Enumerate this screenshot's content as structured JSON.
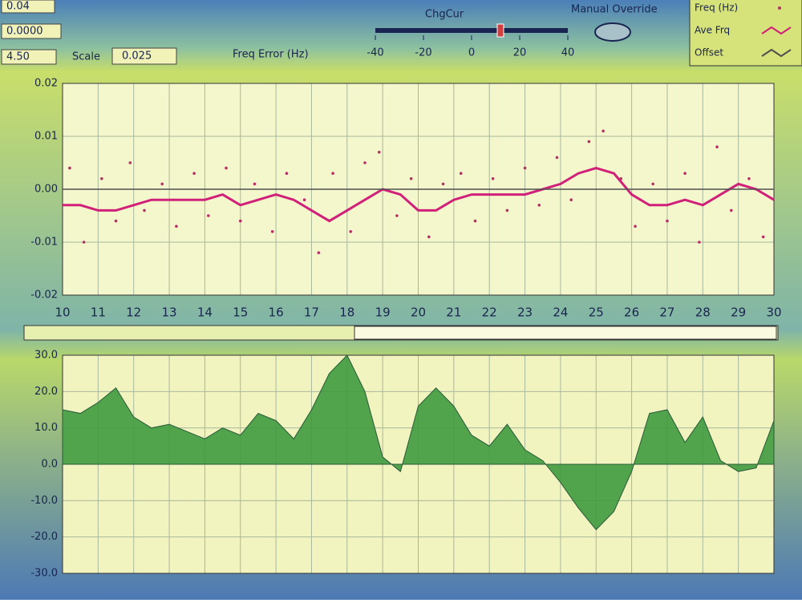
{
  "controls": {
    "fields": [
      "0.04",
      "0.0000",
      "4.50"
    ],
    "scale_label": "Scale",
    "scale_value": "0.025",
    "freq_error_label": "Freq Error (Hz)",
    "slider": {
      "label": "ChgCur",
      "ticks": [
        -40,
        -20,
        0,
        20,
        40
      ],
      "value": 12
    },
    "button": "Manual Override"
  },
  "chart_data": [
    {
      "type": "line",
      "xlim": [
        10,
        30
      ],
      "xticks": [
        10,
        11,
        12,
        13,
        14,
        15,
        16,
        17,
        18,
        19,
        20,
        21,
        22,
        23,
        24,
        25,
        26,
        27,
        28,
        29,
        30
      ],
      "ylim": [
        -0.02,
        0.02
      ],
      "yticks": [
        0.02,
        0.01,
        {
          "value": 0,
          "label": "0.00"
        },
        -0.01,
        -0.02
      ],
      "grid": true,
      "series": [
        {
          "name": "Freq (Hz)",
          "type": "scatter",
          "color": "#b8306a",
          "x": [
            10.2,
            10.6,
            11.1,
            11.5,
            11.9,
            12.3,
            12.8,
            13.2,
            13.7,
            14.1,
            14.6,
            15.0,
            15.4,
            15.9,
            16.3,
            16.8,
            17.2,
            17.6,
            18.1,
            18.5,
            18.9,
            19.4,
            19.8,
            20.3,
            20.7,
            21.2,
            21.6,
            22.1,
            22.5,
            23.0,
            23.4,
            23.9,
            24.3,
            24.8,
            25.2,
            25.7,
            26.1,
            26.6,
            27.0,
            27.5,
            27.9,
            28.4,
            28.8,
            29.3,
            29.7
          ],
          "values": [
            0.004,
            -0.01,
            0.002,
            -0.006,
            0.005,
            -0.004,
            0.001,
            -0.007,
            0.003,
            -0.005,
            0.004,
            -0.006,
            0.001,
            -0.008,
            0.003,
            -0.002,
            -0.012,
            0.003,
            -0.008,
            0.005,
            0.007,
            -0.005,
            0.002,
            -0.009,
            0.001,
            0.003,
            -0.006,
            0.002,
            -0.004,
            0.004,
            -0.003,
            0.006,
            -0.002,
            0.009,
            0.011,
            0.002,
            -0.007,
            0.001,
            -0.006,
            0.003,
            -0.01,
            0.008,
            -0.004,
            0.002,
            -0.009
          ]
        },
        {
          "name": "Ave Frq",
          "type": "line",
          "color": "#d0207a",
          "x": [
            10,
            10.5,
            11,
            11.5,
            12,
            12.5,
            13,
            13.5,
            14,
            14.5,
            15,
            15.5,
            16,
            16.5,
            17,
            17.5,
            18,
            18.5,
            19,
            19.5,
            20,
            20.5,
            21,
            21.5,
            22,
            22.5,
            23,
            23.5,
            24,
            24.5,
            25,
            25.5,
            26,
            26.5,
            27,
            27.5,
            28,
            28.5,
            29,
            29.5,
            30
          ],
          "values": [
            -0.003,
            -0.003,
            -0.004,
            -0.004,
            -0.003,
            -0.002,
            -0.002,
            -0.002,
            -0.002,
            -0.001,
            -0.003,
            -0.002,
            -0.001,
            -0.002,
            -0.004,
            -0.006,
            -0.004,
            -0.002,
            0.0,
            -0.001,
            -0.004,
            -0.004,
            -0.002,
            -0.001,
            -0.001,
            -0.001,
            -0.001,
            0.0,
            0.001,
            0.003,
            0.004,
            0.003,
            -0.001,
            -0.003,
            -0.003,
            -0.002,
            -0.003,
            -0.001,
            0.001,
            0.0,
            -0.002
          ]
        },
        {
          "name": "Offset",
          "type": "line",
          "color": "#505050",
          "x": [
            10,
            30
          ],
          "values": [
            0,
            0
          ]
        }
      ]
    },
    {
      "type": "area",
      "xlim": [
        10,
        30
      ],
      "xticks": [
        10,
        11,
        12,
        13,
        14,
        15,
        16,
        17,
        18,
        19,
        20,
        21,
        22,
        23,
        24,
        25,
        26,
        27,
        28,
        29,
        30
      ],
      "ylim": [
        -30,
        30
      ],
      "yticks": [
        {
          "value": 30,
          "label": "30.0"
        },
        {
          "value": 20,
          "label": "20.0"
        },
        {
          "value": 10,
          "label": "10.0"
        },
        {
          "value": 0,
          "label": "0.0"
        },
        {
          "value": -10,
          "label": "-10.0"
        },
        {
          "value": -20,
          "label": "-20.0"
        },
        {
          "value": -30,
          "label": "-30.0"
        }
      ],
      "grid": true,
      "series": [
        {
          "type": "area",
          "color": "#3f9a3f",
          "x": [
            10,
            10.5,
            11,
            11.5,
            12,
            12.5,
            13,
            13.5,
            14,
            14.5,
            15,
            15.5,
            16,
            16.5,
            17,
            17.5,
            18,
            18.5,
            19,
            19.5,
            20,
            20.5,
            21,
            21.5,
            22,
            22.5,
            23,
            23.5,
            24,
            24.5,
            25,
            25.5,
            26,
            26.5,
            27,
            27.5,
            28,
            28.5,
            29,
            29.5,
            30
          ],
          "values": [
            15,
            14,
            17,
            21,
            13,
            10,
            11,
            9,
            7,
            10,
            8,
            14,
            12,
            7,
            15,
            25,
            30,
            20,
            2,
            -2,
            16,
            21,
            16,
            8,
            5,
            11,
            4,
            1,
            -5,
            -12,
            -18,
            -13,
            -2,
            14,
            15,
            6,
            13,
            1,
            -2,
            -1,
            12
          ]
        }
      ]
    }
  ]
}
